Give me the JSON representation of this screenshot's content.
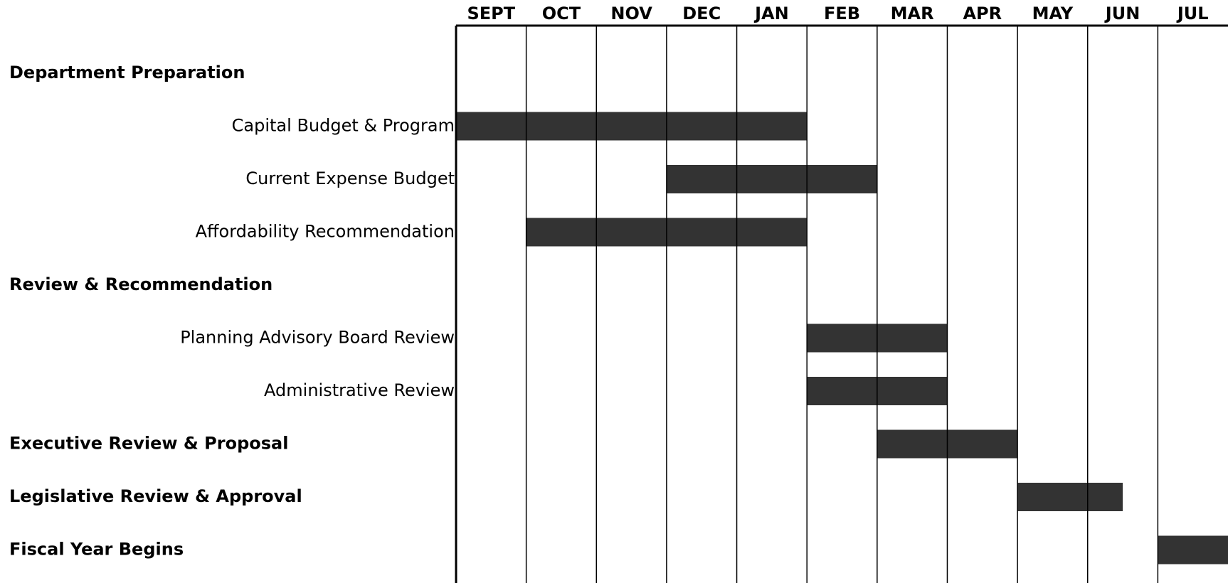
{
  "chart_data": {
    "type": "gantt",
    "categories": [
      "SEPT",
      "OCT",
      "NOV",
      "DEC",
      "JAN",
      "FEB",
      "MAR",
      "APR",
      "MAY",
      "JUN",
      "JUL"
    ],
    "xlim": [
      0,
      11
    ],
    "color": "#333333",
    "rows": [
      {
        "name": "Department Preparation",
        "bold": true
      },
      {
        "name": "Capital Budget & Program",
        "start": 0,
        "end": 5
      },
      {
        "name": "Current Expense Budget",
        "start": 3,
        "end": 6
      },
      {
        "name": "Affordability Recommendation",
        "start": 1,
        "end": 5
      },
      {
        "name": "Review & Recommendation",
        "bold": true
      },
      {
        "name": "Planning Advisory Board Review",
        "start": 5,
        "end": 7
      },
      {
        "name": "Administrative Review",
        "start": 5,
        "end": 7
      },
      {
        "name": "Executive Review & Proposal",
        "bold": true,
        "start": 6,
        "end": 8
      },
      {
        "name": "Legislative Review & Approval",
        "bold": true,
        "start": 8,
        "end": 9.5
      },
      {
        "name": "Fiscal Year Begins",
        "bold": true,
        "start": 10,
        "end": 11
      }
    ]
  }
}
